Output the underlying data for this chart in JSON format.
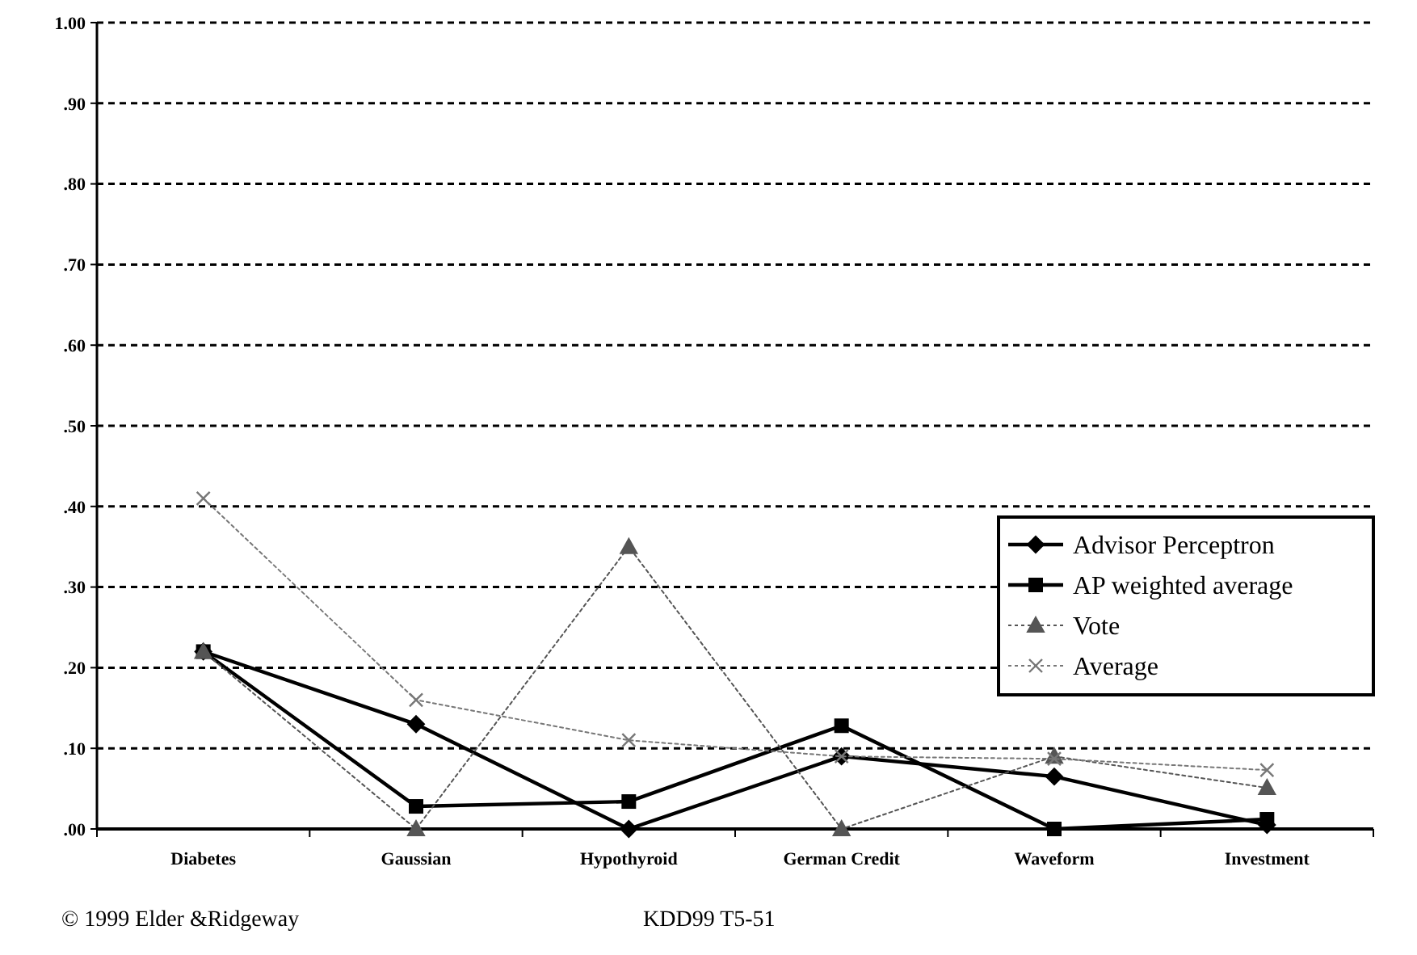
{
  "chart_data": {
    "type": "line",
    "categories": [
      "Diabetes",
      "Gaussian",
      "Hypothyroid",
      "German Credit",
      "Waveform",
      "Investment"
    ],
    "series": [
      {
        "name": "Advisor Perceptron",
        "color": "#000000",
        "marker": "diamond",
        "line_style": "solid",
        "values": [
          0.22,
          0.13,
          0.0,
          0.09,
          0.065,
          0.005
        ]
      },
      {
        "name": "AP weighted average",
        "color": "#000000",
        "marker": "square",
        "line_style": "solid",
        "values": [
          0.22,
          0.028,
          0.034,
          0.128,
          0.0,
          0.012
        ]
      },
      {
        "name": "Vote",
        "color": "#555555",
        "marker": "triangle",
        "line_style": "dotted",
        "values": [
          0.22,
          0.0,
          0.35,
          0.0,
          0.09,
          0.051
        ]
      },
      {
        "name": "Average",
        "color": "#777777",
        "marker": "cross",
        "line_style": "dotted",
        "values": [
          0.41,
          0.16,
          0.11,
          0.09,
          0.087,
          0.073
        ]
      }
    ],
    "ylim": [
      0,
      1
    ],
    "yticks": [
      {
        "value": 0,
        "label": ".00"
      },
      {
        "value": 0.1,
        "label": ".10"
      },
      {
        "value": 0.2,
        "label": ".20"
      },
      {
        "value": 0.3,
        "label": ".30"
      },
      {
        "value": 0.4,
        "label": ".40"
      },
      {
        "value": 0.5,
        "label": ".50"
      },
      {
        "value": 0.6,
        "label": ".60"
      },
      {
        "value": 0.7,
        "label": ".70"
      },
      {
        "value": 0.8,
        "label": ".80"
      },
      {
        "value": 0.9,
        "label": ".90"
      },
      {
        "value": 1,
        "label": "1.00"
      }
    ],
    "grid": "y",
    "legend": "right",
    "annotations": [
      "© 1999 Elder &Ridgeway",
      "KDD99 T5-51"
    ]
  }
}
